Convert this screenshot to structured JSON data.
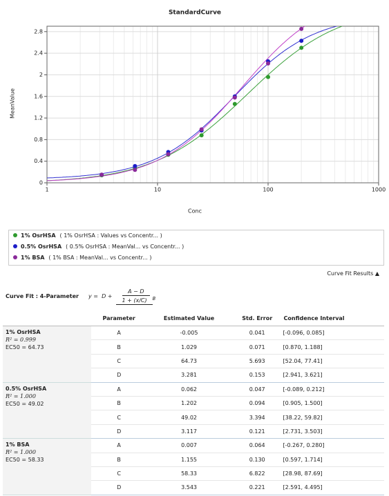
{
  "chart_data": {
    "type": "line",
    "title": "StandardCurve",
    "x_label": "Conc",
    "y_label": "MeanValue",
    "x": [
      3.125,
      6.25,
      12.5,
      25,
      50,
      100,
      200
    ],
    "series": [
      {
        "name": "1% OsrHSA",
        "color": "#2e9a2e",
        "curve_color": "#3aa03a",
        "values": [
          0.14,
          0.27,
          0.52,
          0.88,
          1.46,
          1.96,
          2.5
        ]
      },
      {
        "name": "0.5% OsrHSA",
        "color": "#1c1cc8",
        "curve_color": "#3030d0",
        "values": [
          0.15,
          0.31,
          0.57,
          0.97,
          1.6,
          2.25,
          2.63
        ]
      },
      {
        "name": "1% BSA",
        "color": "#8a2a9a",
        "curve_color": "#c040c8",
        "values": [
          0.15,
          0.24,
          0.53,
          0.99,
          1.58,
          2.21,
          2.85
        ]
      }
    ],
    "legend_details": [
      "( 1% OsrHSA : Values   vs Concentr... )",
      "( 0.5% OsrHSA : MeanVal...   vs Concentr... )",
      "( 1% BSA : MeanVal...   vs Concentr... )"
    ],
    "xlim": [
      1,
      1000
    ],
    "xticks": [
      1,
      10,
      100,
      1000
    ],
    "log_x": true,
    "ylim": [
      0,
      2.9
    ],
    "yticks": [
      0,
      0.4,
      0.8,
      1.2,
      1.6,
      2,
      2.4,
      2.8
    ],
    "grid": true
  },
  "results_link": "Curve Fit Results ▲",
  "fit": {
    "label": "Curve Fit : 4-Parameter",
    "lhs": "y =",
    "first": "D +",
    "numerator": "A − D",
    "denominator": "1 + (x/C)",
    "exponent": "B"
  },
  "table": {
    "columns": [
      "Parameter",
      "Estimated Value",
      "Std. Error",
      "Confidence Interval"
    ],
    "groups": [
      {
        "name": "1% OsrHSA",
        "r2": "R² = 0.999",
        "ec50": "EC50 = 64.73",
        "rows": [
          [
            "A",
            "-0.005",
            "0.041",
            "[-0.096, 0.085]"
          ],
          [
            "B",
            "1.029",
            "0.071",
            "[0.870, 1.188]"
          ],
          [
            "C",
            "64.73",
            "5.693",
            "[52.04, 77.41]"
          ],
          [
            "D",
            "3.281",
            "0.153",
            "[2.941, 3.621]"
          ]
        ]
      },
      {
        "name": "0.5% OsrHSA",
        "r2": "R² = 1.000",
        "ec50": "EC50 = 49.02",
        "rows": [
          [
            "A",
            "0.062",
            "0.047",
            "[-0.089, 0.212]"
          ],
          [
            "B",
            "1.202",
            "0.094",
            "[0.905, 1.500]"
          ],
          [
            "C",
            "49.02",
            "3.394",
            "[38.22, 59.82]"
          ],
          [
            "D",
            "3.117",
            "0.121",
            "[2.731, 3.503]"
          ]
        ]
      },
      {
        "name": "1% BSA",
        "r2": "R² = 1.000",
        "ec50": "EC50 = 58.33",
        "rows": [
          [
            "A",
            "0.007",
            "0.064",
            "[-0.267, 0.280]"
          ],
          [
            "B",
            "1.155",
            "0.130",
            "[0.597, 1.714]"
          ],
          [
            "C",
            "58.33",
            "6.822",
            "[28.98, 87.69]"
          ],
          [
            "D",
            "3.543",
            "0.221",
            "[2.591, 4.495]"
          ]
        ]
      }
    ]
  }
}
